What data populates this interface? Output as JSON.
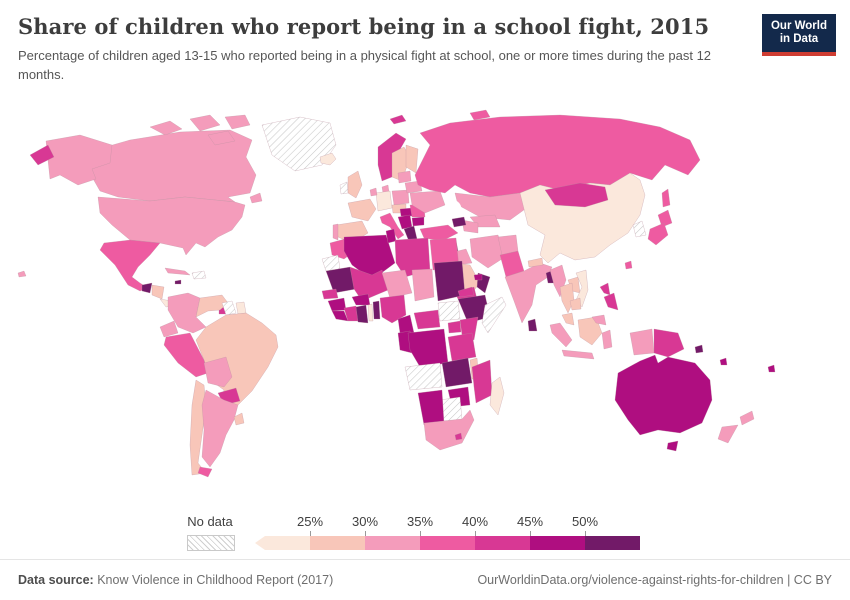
{
  "header": {
    "title": "Share of children who report being in a school fight, 2015",
    "subtitle": "Percentage of children aged 13-15 who reported being in a physical fight at school, one or more times during the past 12 months.",
    "logo": {
      "line1": "Our World",
      "line2": "in Data",
      "bg_color": "#13294b",
      "accent_color": "#cf3d32"
    }
  },
  "chart_data": {
    "type": "heatmap",
    "subtype": "choropleth-world-map",
    "title": "Share of children who report being in a school fight, 2015",
    "unit": "%",
    "legend_position": "bottom",
    "bins": [
      "<25%",
      "25-30%",
      "30-35%",
      "35-40%",
      "40-45%",
      "45-50%",
      ">50%"
    ],
    "bin_colors": [
      "#fbe8dc",
      "#f8c6b9",
      "#f49cbb",
      "#ee5ba1",
      "#d83894",
      "#af0e80",
      "#721a68"
    ],
    "no_data_pattern": "diagonal-hatch"
  },
  "legend": {
    "no_data_label": "No data",
    "tick_labels": [
      "25%",
      "30%",
      "35%",
      "40%",
      "45%",
      "50%"
    ],
    "colors": [
      "#fbe8dc",
      "#f8c6b9",
      "#f49cbb",
      "#ee5ba1",
      "#d83894",
      "#af0e80",
      "#721a68"
    ]
  },
  "map": {
    "regions": {
      "canada": 2,
      "usa": 2,
      "alaska": 2,
      "chukotka": 4,
      "hawaii": 2,
      "greenland": "nodata",
      "iceland": 0,
      "newfoundland": 2,
      "arctic-island-1": 2,
      "arctic-island-2": 2,
      "arctic-island-3": 2,
      "arctic-island-4": 2,
      "mexico": 3,
      "guatemala": 6,
      "honduras-nicaragua": 1,
      "costa-rica-panama": 0,
      "cuba": 2,
      "jamaica": 6,
      "hispaniola": "nodata",
      "trinidad": 4,
      "colombia": 2,
      "venezuela": 1,
      "guyana": "nodata",
      "suriname": 0,
      "brazil": 1,
      "ecuador": 2,
      "peru": 3,
      "bolivia": 2,
      "paraguay": 4,
      "chile": 1,
      "argentina": 2,
      "uruguay": 1,
      "tierra-del-fuego": 3,
      "norway": 4,
      "sweden": 1,
      "finland": 1,
      "denmark": 2,
      "svalbard": 4,
      "uk": 1,
      "ireland": "nodata",
      "france": 1,
      "spain": 1,
      "portugal": 2,
      "germany": 0,
      "benelux": 2,
      "italy": 3,
      "poland": 2,
      "czech-austria": 1,
      "hungary": 5,
      "balkans": 5,
      "greece": 6,
      "romania": 3,
      "bulgaria": 5,
      "ukraine": 2,
      "belarus": 2,
      "baltics": 2,
      "russia": 3,
      "sakhalin": 3,
      "novaya-zemlya": 3,
      "kazakhstan": 2,
      "uzbekistan": 2,
      "turkmenistan": 2,
      "caucasus": 6,
      "turkey": 3,
      "syria": 6,
      "israel-jordan": 5,
      "iraq": 2,
      "iran": 2,
      "saudi-arabia": 1,
      "yemen": 4,
      "oman": 6,
      "uae": 5,
      "afghanistan": 2,
      "pakistan": 3,
      "india": 2,
      "nepal": 1,
      "bangladesh": 6,
      "sri-lanka": 6,
      "china": 0,
      "mongolia": 4,
      "korea": "nodata",
      "japan-north": 3,
      "japan-south": 3,
      "taiwan": 3,
      "myanmar": 2,
      "thailand": 1,
      "laos": 1,
      "vietnam": 0,
      "cambodia": 1,
      "malaysia": 1,
      "sumatra": 2,
      "java": 2,
      "borneo": 1,
      "sabah": 2,
      "sulawesi": 2,
      "philippines": 4,
      "west-papua": 2,
      "papua-new-guinea": 4,
      "solomon": 6,
      "vanuatu": 5,
      "fiji": 5,
      "morocco": 3,
      "western-sahara": "nodata",
      "algeria": 5,
      "tunisia": 5,
      "libya": 4,
      "egypt": 3,
      "mauritania": 6,
      "mali": 4,
      "niger": 2,
      "chad": 2,
      "sudan": 6,
      "eritrea": 4,
      "ethiopia": 6,
      "somalia": "nodata",
      "senegal": 4,
      "guinea": 5,
      "sierra-leone-liberia": 5,
      "ivory-coast": 4,
      "burkina": 5,
      "ghana": 6,
      "togo": 0,
      "benin": 6,
      "nigeria": 4,
      "cameroon": 5,
      "central-african-republic": 4,
      "south-sudan": "nodata",
      "uganda": 4,
      "kenya": 4,
      "drc": 5,
      "congo-gabon": 5,
      "tanzania": 4,
      "angola": "nodata",
      "zambia": 6,
      "malawi": 1,
      "mozambique": 4,
      "zimbabwe": 5,
      "botswana": "nodata",
      "namibia": 5,
      "south-africa": 2,
      "lesotho": 4,
      "madagascar": 0,
      "australia": 5,
      "tasmania": 5,
      "nz-north": 2,
      "nz-south": 2
    }
  },
  "footer": {
    "source_label": "Data source:",
    "source_text": " Know Violence in Childhood Report (2017)",
    "link_text": "OurWorldinData.org/violence-against-rights-for-children | CC BY"
  }
}
